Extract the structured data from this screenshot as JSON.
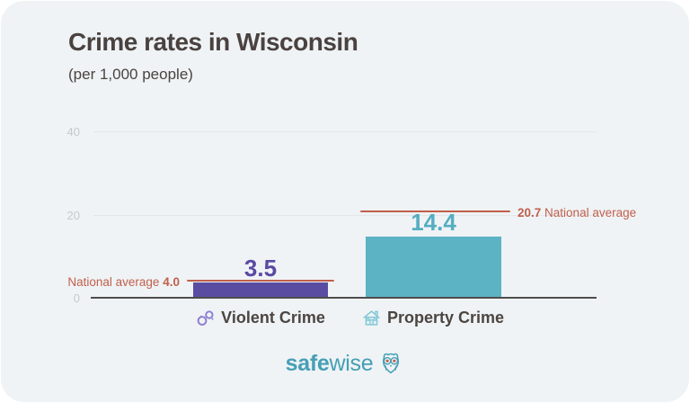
{
  "header": {
    "title": "Crime rates in Wisconsin",
    "subtitle": "(per 1,000 people)"
  },
  "chart_data": {
    "type": "bar",
    "title": "Crime rates in Wisconsin",
    "subtitle": "(per 1,000 people)",
    "categories": [
      "Violent Crime",
      "Property Crime"
    ],
    "values": [
      3.5,
      14.4
    ],
    "value_labels": [
      "3.5",
      "14.4"
    ],
    "national_averages": [
      4.0,
      20.7
    ],
    "ylim": [
      0,
      40
    ],
    "ytick_labels": [
      "0",
      "20",
      "40"
    ],
    "grid": true,
    "legend": false,
    "bar_colors": [
      "#5a4da1",
      "#5bb3c4"
    ],
    "value_label_colors": [
      "#5a4aa5",
      "#55adc2"
    ],
    "national_average_color": "#c15f4c",
    "background_color": "#eff3f5"
  },
  "annotations": {
    "violent": {
      "label": "National average",
      "value": "4.0"
    },
    "property": {
      "value": "20.7",
      "label": "National average"
    }
  },
  "x_axis": {
    "items": [
      {
        "icon": "handcuffs-icon",
        "label": "Violent Crime"
      },
      {
        "icon": "house-icon",
        "label": "Property Crime"
      }
    ]
  },
  "footer": {
    "brand_bold": "safe",
    "brand_light": "wise",
    "owl_icon": "owl-icon",
    "brand_color": "#459fb6"
  }
}
